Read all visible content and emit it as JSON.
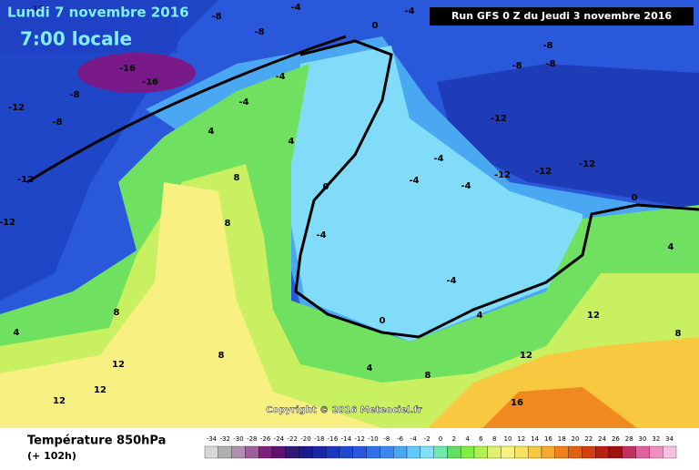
{
  "header": {
    "title": "Lundi 7 novembre 2016",
    "time": "7:00 locale",
    "run": "Run GFS 0 Z du Jeudi 3 novembre 2016"
  },
  "copyright": "Copyright © 2016 Meteociel.fr",
  "footer": {
    "parameter": "Température 850hPa",
    "lead": "(+ 102h)"
  },
  "scale": {
    "values": [
      -34,
      -32,
      -30,
      -28,
      -26,
      -24,
      -22,
      -20,
      -18,
      -16,
      -14,
      -12,
      -10,
      -8,
      -6,
      -4,
      -2,
      0,
      2,
      4,
      6,
      8,
      10,
      12,
      14,
      16,
      18,
      20,
      22,
      24,
      26,
      28,
      30,
      32,
      34
    ],
    "colors": [
      "#d8d8d8",
      "#b0b0b0",
      "#b090b0",
      "#a060a0",
      "#802080",
      "#601070",
      "#301878",
      "#1a1a90",
      "#1a28a8",
      "#1a38c0",
      "#2048d0",
      "#2858e0",
      "#3070ea",
      "#3888f0",
      "#48a8f5",
      "#60c8fa",
      "#80e0fc",
      "#70e8b0",
      "#60e060",
      "#80f040",
      "#b0f050",
      "#e0f070",
      "#f8f080",
      "#f8e060",
      "#f8c840",
      "#f8a830",
      "#f08020",
      "#e06018",
      "#d04010",
      "#b82010",
      "#a01010",
      "#c03060",
      "#e060a0",
      "#f090c0",
      "#f8c0e0"
    ]
  },
  "contour_labels": [
    -12,
    -8,
    -8,
    -4,
    -4,
    0,
    -8,
    -8,
    -8,
    -12,
    -12,
    -12,
    -12,
    -12,
    -8,
    -8,
    -12,
    -16,
    -16,
    -12,
    -4,
    -4,
    4,
    4,
    0,
    -4,
    -4,
    -4,
    -4,
    -4,
    0,
    4,
    8,
    8,
    8,
    8,
    4,
    12,
    12,
    4,
    8,
    12,
    16,
    12,
    0,
    4,
    8,
    12
  ]
}
